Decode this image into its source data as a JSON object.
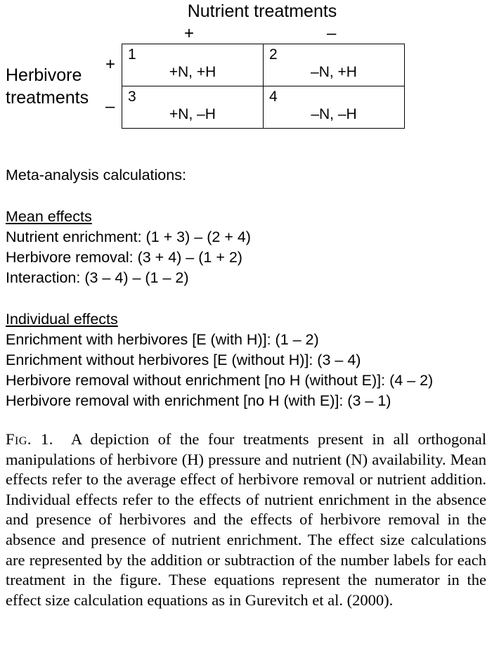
{
  "figure": {
    "col_header": "Nutrient treatments",
    "col_signs": [
      "+",
      "–"
    ],
    "row_header_line1": "Herbivore",
    "row_header_line2": "treatments",
    "row_signs": [
      "+",
      "–"
    ],
    "cells": [
      {
        "number": "1",
        "label": "+N, +H"
      },
      {
        "number": "2",
        "label": "–N, +H"
      },
      {
        "number": "3",
        "label": "+N, –H"
      },
      {
        "number": "4",
        "label": "–N, –H"
      }
    ]
  },
  "calculations": {
    "heading": "Meta-analysis calculations:",
    "mean_effects_heading": "Mean effects",
    "mean_effects": [
      "Nutrient enrichment: (1 + 3) – (2 + 4)",
      "Herbivore removal: (3 + 4) – (1 + 2)",
      "Interaction: (3 – 4) – (1 – 2)"
    ],
    "individual_effects_heading": "Individual effects",
    "individual_effects": [
      "Enrichment with herbivores [E (with H)]: (1 – 2)",
      "Enrichment without herbivores [E (without H)]: (3 – 4)",
      "Herbivore removal without enrichment [no H (without E)]: (4 – 2)",
      "Herbivore removal with enrichment [no H (with E)]: (3 – 1)"
    ]
  },
  "caption": {
    "label": "Fig. 1.",
    "text": "A depiction of the four treatments present in all orthogonal manipulations of herbivore (H) pressure and nutrient (N) availability. Mean effects refer to the average effect of herbivore removal or nutrient addition. Individual effects refer to the effects of nutrient enrichment in the absence and presence of herbivores and the effects of herbivore removal in the absence and presence of nutrient enrichment. The effect size calculations are represented by the addition or subtraction of the number labels for each treatment in the figure. These equations represent the numerator in the effect size calculation equations as in Gurevitch et al. (2000)."
  }
}
